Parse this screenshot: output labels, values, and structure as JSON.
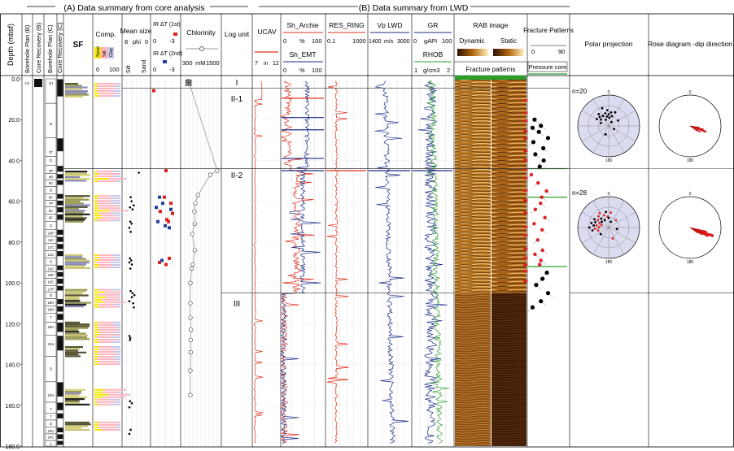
{
  "section_headers": {
    "a": "(A) Data summary from core analysis",
    "b": "(B) Data summary from LWD"
  },
  "depth_axis": {
    "label": "Depth (mbsf)",
    "range": [
      0,
      180
    ],
    "ticks": [
      "0.0",
      "20.0",
      "40.0",
      "60.0",
      "80.0",
      "100.0",
      "120.0",
      "140.0",
      "160.0",
      "180.0"
    ]
  },
  "core_columns": {
    "borehole_plan_b": "Borehole Plan (B)",
    "core_recovery_b": "Core Recovery (B)",
    "borehole_plan_c": "Borehole Plan (C)",
    "core_recovery_c": "Core Recovery (C)",
    "b_core_label": "1H"
  },
  "core_labels_c": [
    {
      "label": "1H",
      "depth": 2
    },
    {
      "label": "D",
      "depth": 22
    },
    {
      "label": "3T",
      "depth": 36
    },
    {
      "label": "D",
      "depth": 40
    },
    {
      "label": "3P",
      "depth": 45
    },
    {
      "label": "4R",
      "depth": 48
    },
    {
      "label": "5C",
      "depth": 51
    },
    {
      "label": "D",
      "depth": 54.5
    },
    {
      "label": "6C",
      "depth": 58
    },
    {
      "label": "7P",
      "depth": 61
    },
    {
      "label": "8C",
      "depth": 64.5
    },
    {
      "label": "9C",
      "depth": 68
    },
    {
      "label": "D",
      "depth": 72
    },
    {
      "label": "10P",
      "depth": 75.5
    },
    {
      "label": "11C",
      "depth": 79
    },
    {
      "label": "12C",
      "depth": 82.5
    },
    {
      "label": "13C",
      "depth": 86
    },
    {
      "label": "D",
      "depth": 89.5
    },
    {
      "label": "14C",
      "depth": 93
    },
    {
      "label": "15P",
      "depth": 96
    },
    {
      "label": "16C",
      "depth": 99.5
    },
    {
      "label": "17P",
      "depth": 103
    },
    {
      "label": "D",
      "depth": 106
    },
    {
      "label": "18H",
      "depth": 109.5
    },
    {
      "label": "19H",
      "depth": 113
    },
    {
      "label": "T",
      "depth": 117
    },
    {
      "label": "20H",
      "depth": 121.5
    },
    {
      "label": "21H",
      "depth": 130
    },
    {
      "label": "D",
      "depth": 142
    },
    {
      "label": "22H",
      "depth": 155
    },
    {
      "label": "T",
      "depth": 162
    },
    {
      "label": "T",
      "depth": 165.5
    },
    {
      "label": "O",
      "depth": 169
    },
    {
      "label": "23C",
      "depth": 172.5
    },
    {
      "label": "24C",
      "depth": 175.5
    },
    {
      "label": "T",
      "depth": 179
    }
  ],
  "sf_header": "SF",
  "comp_header": {
    "title": "Comp.",
    "sand": "Sand",
    "silt": "Silt",
    "clay": "Clay",
    "min": "0",
    "max": "100"
  },
  "mean_size_header": {
    "title": "Mean size",
    "left": "8",
    "mid": "phi",
    "right": "0",
    "silt": "Silt",
    "sand": "Sand"
  },
  "ir_header": {
    "first": "IR ΔT (1st)",
    "second": "IR ΔT (2nd)",
    "min": "0",
    "max": "-3"
  },
  "chlorinity_header": {
    "title": "Chlorinity",
    "min": "300",
    "unit": "mM",
    "max": "1500"
  },
  "log_unit_header": "Log unit",
  "log_units": [
    {
      "label": "I",
      "depth": 1.5
    },
    {
      "label": "II-1",
      "depth": 9.5
    },
    {
      "label": "II-2",
      "depth": 47
    },
    {
      "label": "III",
      "depth": 110
    }
  ],
  "lwd_tracks": {
    "ucav": {
      "title": "UCAV",
      "min": "7",
      "unit": "in",
      "max": "12"
    },
    "sh_archie": {
      "title": "Sh_Archie",
      "min": "0",
      "unit": "%",
      "max": "100"
    },
    "sh_emt": {
      "title": "Sh_EMT",
      "min": "0",
      "unit": "%",
      "max": "100"
    },
    "res_ring": {
      "title": "RES_RING",
      "min": "0.1",
      "max": "1000"
    },
    "vp_lwd": {
      "title": "Vp LWD",
      "min": "1400",
      "unit": "m/s",
      "max": "3000"
    },
    "gr": {
      "title": "GR",
      "min": "0",
      "unit": "gAPI",
      "max": "100"
    },
    "rhob": {
      "title": "RHOB",
      "min": "1",
      "unit": "g/cm3",
      "max": "2"
    }
  },
  "rab_image": {
    "title": "RAB image",
    "dynamic": "Dynamic",
    "static": "Static",
    "fracture_patterns": "Fracture patterns"
  },
  "fracture_track": {
    "title": "Fracture Patterns",
    "min": "0",
    "max": "90",
    "pressure_core": "Pressure core"
  },
  "polar_projection_title": "Polar projection",
  "rose_title": "Rose diagram -dip direction",
  "stereonets": [
    {
      "n_label": "n=20",
      "top_label": "0",
      "bottom_label": "180",
      "rose_dir": 108
    },
    {
      "n_label": "n=28",
      "top_label": "0",
      "bottom_label": "180",
      "rose_dir": 115
    }
  ],
  "colors": {
    "sand": "#f3e600",
    "silt": "#ffb4be",
    "clay": "#c7c7e8",
    "ir_first": "#e02020",
    "ir_second": "#2040a0",
    "sh_archie": "#e0301e",
    "sh_emt": "#1a2a8a",
    "res": "#e0301e",
    "vp": "#1a2a8a",
    "gr": "#1a2a8a",
    "rhob": "#2aa02a",
    "ucav": "#e0301e",
    "stereonet_fill": "#dcdcf0",
    "rose": "#e02020"
  },
  "chart_data": {
    "type": "line",
    "y_axis": "Depth (mbsf)",
    "ylim": [
      0,
      180
    ],
    "chlorinity_profile": {
      "unit": "mM",
      "points": [
        [
          1,
          500
        ],
        [
          45,
          1420
        ],
        [
          47,
          1200
        ],
        [
          57,
          800
        ],
        [
          61,
          720
        ],
        [
          65,
          690
        ],
        [
          71,
          700
        ],
        [
          76,
          620
        ],
        [
          84,
          700
        ],
        [
          91,
          640
        ],
        [
          93,
          600
        ],
        [
          100,
          560
        ],
        [
          110,
          560
        ],
        [
          117,
          560
        ],
        [
          123,
          580
        ],
        [
          128,
          570
        ],
        [
          134,
          570
        ],
        [
          143,
          560
        ],
        [
          155,
          560
        ]
      ]
    },
    "mean_size_phi": [
      [
        46,
        3.2
      ],
      [
        58,
        5.8
      ],
      [
        60,
        5.5
      ],
      [
        62,
        4.8
      ],
      [
        63,
        6.0
      ],
      [
        64,
        5.2
      ],
      [
        70,
        5.9
      ],
      [
        71,
        5.5
      ],
      [
        73,
        6.2
      ],
      [
        75,
        5.8
      ],
      [
        88,
        6.0
      ],
      [
        89,
        5.6
      ],
      [
        90,
        6.2
      ],
      [
        91,
        5.4
      ],
      [
        93,
        5.9
      ],
      [
        104,
        5.8
      ],
      [
        105,
        5.2
      ],
      [
        106,
        4.6
      ],
      [
        107,
        5.4
      ],
      [
        109,
        6.2
      ],
      [
        110,
        5.0
      ],
      [
        112,
        4.8
      ],
      [
        126,
        6.2
      ],
      [
        127,
        5.9
      ],
      [
        128,
        6.0
      ],
      [
        158,
        6.0
      ],
      [
        159,
        5.4
      ],
      [
        161,
        6.2
      ],
      [
        172,
        5.8
      ],
      [
        174,
        6.2
      ]
    ],
    "ir_delta_t_1st": [
      [
        45,
        -1.6
      ],
      [
        58,
        -1.4
      ],
      [
        61,
        -2.2
      ],
      [
        65,
        -0.9
      ],
      [
        66,
        -2.4
      ],
      [
        69,
        -1.7
      ],
      [
        70,
        -1.9
      ],
      [
        88,
        -2.0
      ],
      [
        90,
        -0.8
      ],
      [
        91,
        -1.6
      ]
    ],
    "ir_delta_t_2nd": [
      [
        58,
        -0.8
      ],
      [
        61,
        -1.2
      ],
      [
        63,
        -0.4
      ],
      [
        64,
        -2.2
      ],
      [
        70,
        -0.6
      ],
      [
        72,
        -1.5
      ],
      [
        73,
        -2.0
      ],
      [
        89,
        -1.1
      ]
    ],
    "fracture_dip_points": [
      [
        20,
        10
      ],
      [
        23,
        26
      ],
      [
        24,
        5
      ],
      [
        26,
        21
      ],
      [
        29,
        44
      ],
      [
        31,
        7
      ],
      [
        34,
        32
      ],
      [
        37,
        12
      ],
      [
        40,
        33
      ],
      [
        43,
        23
      ],
      [
        47,
        2
      ],
      [
        51,
        19
      ],
      [
        55,
        40
      ],
      [
        58,
        28
      ],
      [
        61,
        25
      ],
      [
        64,
        12
      ],
      [
        68,
        36
      ],
      [
        71,
        9
      ],
      [
        74,
        29
      ],
      [
        79,
        18
      ],
      [
        84,
        30
      ],
      [
        86,
        11
      ],
      [
        89,
        26
      ],
      [
        91,
        23
      ],
      [
        95,
        41
      ],
      [
        98,
        30
      ],
      [
        101,
        14
      ],
      [
        105,
        44
      ],
      [
        109,
        26
      ],
      [
        112,
        5
      ]
    ],
    "fracture_dip_types": [
      "k",
      "k",
      "k",
      "k",
      "k",
      "k",
      "k",
      "k",
      "k",
      "k",
      "r",
      "r",
      "r",
      "r",
      "r",
      "r",
      "r",
      "r",
      "r",
      "r",
      "r",
      "r",
      "r",
      "r",
      "k",
      "k",
      "k",
      "k",
      "k",
      "k"
    ],
    "polar_poles_1": [
      [
        290,
        24
      ],
      [
        300,
        40
      ],
      [
        310,
        29
      ],
      [
        315,
        37
      ],
      [
        320,
        45
      ],
      [
        330,
        34
      ],
      [
        335,
        20
      ],
      [
        340,
        55
      ],
      [
        345,
        38
      ],
      [
        350,
        28
      ],
      [
        355,
        46
      ],
      [
        0,
        34
      ],
      [
        5,
        24
      ],
      [
        10,
        40
      ],
      [
        18,
        30
      ],
      [
        25,
        44
      ],
      [
        35,
        14
      ],
      [
        60,
        32
      ],
      [
        120,
        18
      ],
      [
        200,
        26
      ]
    ],
    "polar_poles_2": [
      [
        255,
        32
      ],
      [
        260,
        48
      ],
      [
        265,
        40
      ],
      [
        270,
        56
      ],
      [
        272,
        28
      ],
      [
        278,
        44
      ],
      [
        280,
        36
      ],
      [
        285,
        52
      ],
      [
        288,
        22
      ],
      [
        292,
        42
      ],
      [
        296,
        30
      ],
      [
        300,
        48
      ],
      [
        305,
        38
      ],
      [
        310,
        26
      ],
      [
        318,
        44
      ],
      [
        320,
        34
      ],
      [
        328,
        50
      ],
      [
        332,
        24
      ],
      [
        340,
        38
      ],
      [
        350,
        46
      ],
      [
        355,
        32
      ],
      [
        0,
        28
      ],
      [
        8,
        44
      ],
      [
        20,
        18
      ],
      [
        45,
        30
      ],
      [
        100,
        24
      ],
      [
        160,
        34
      ],
      [
        230,
        30
      ]
    ],
    "rose_1": [
      [
        100,
        0.3
      ],
      [
        110,
        0.55
      ],
      [
        120,
        0.38
      ],
      [
        125,
        0.28
      ],
      [
        105,
        0.45
      ]
    ],
    "rose_2": [
      [
        105,
        0.55
      ],
      [
        110,
        0.8
      ],
      [
        115,
        0.65
      ],
      [
        120,
        0.45
      ],
      [
        125,
        0.3
      ]
    ]
  }
}
